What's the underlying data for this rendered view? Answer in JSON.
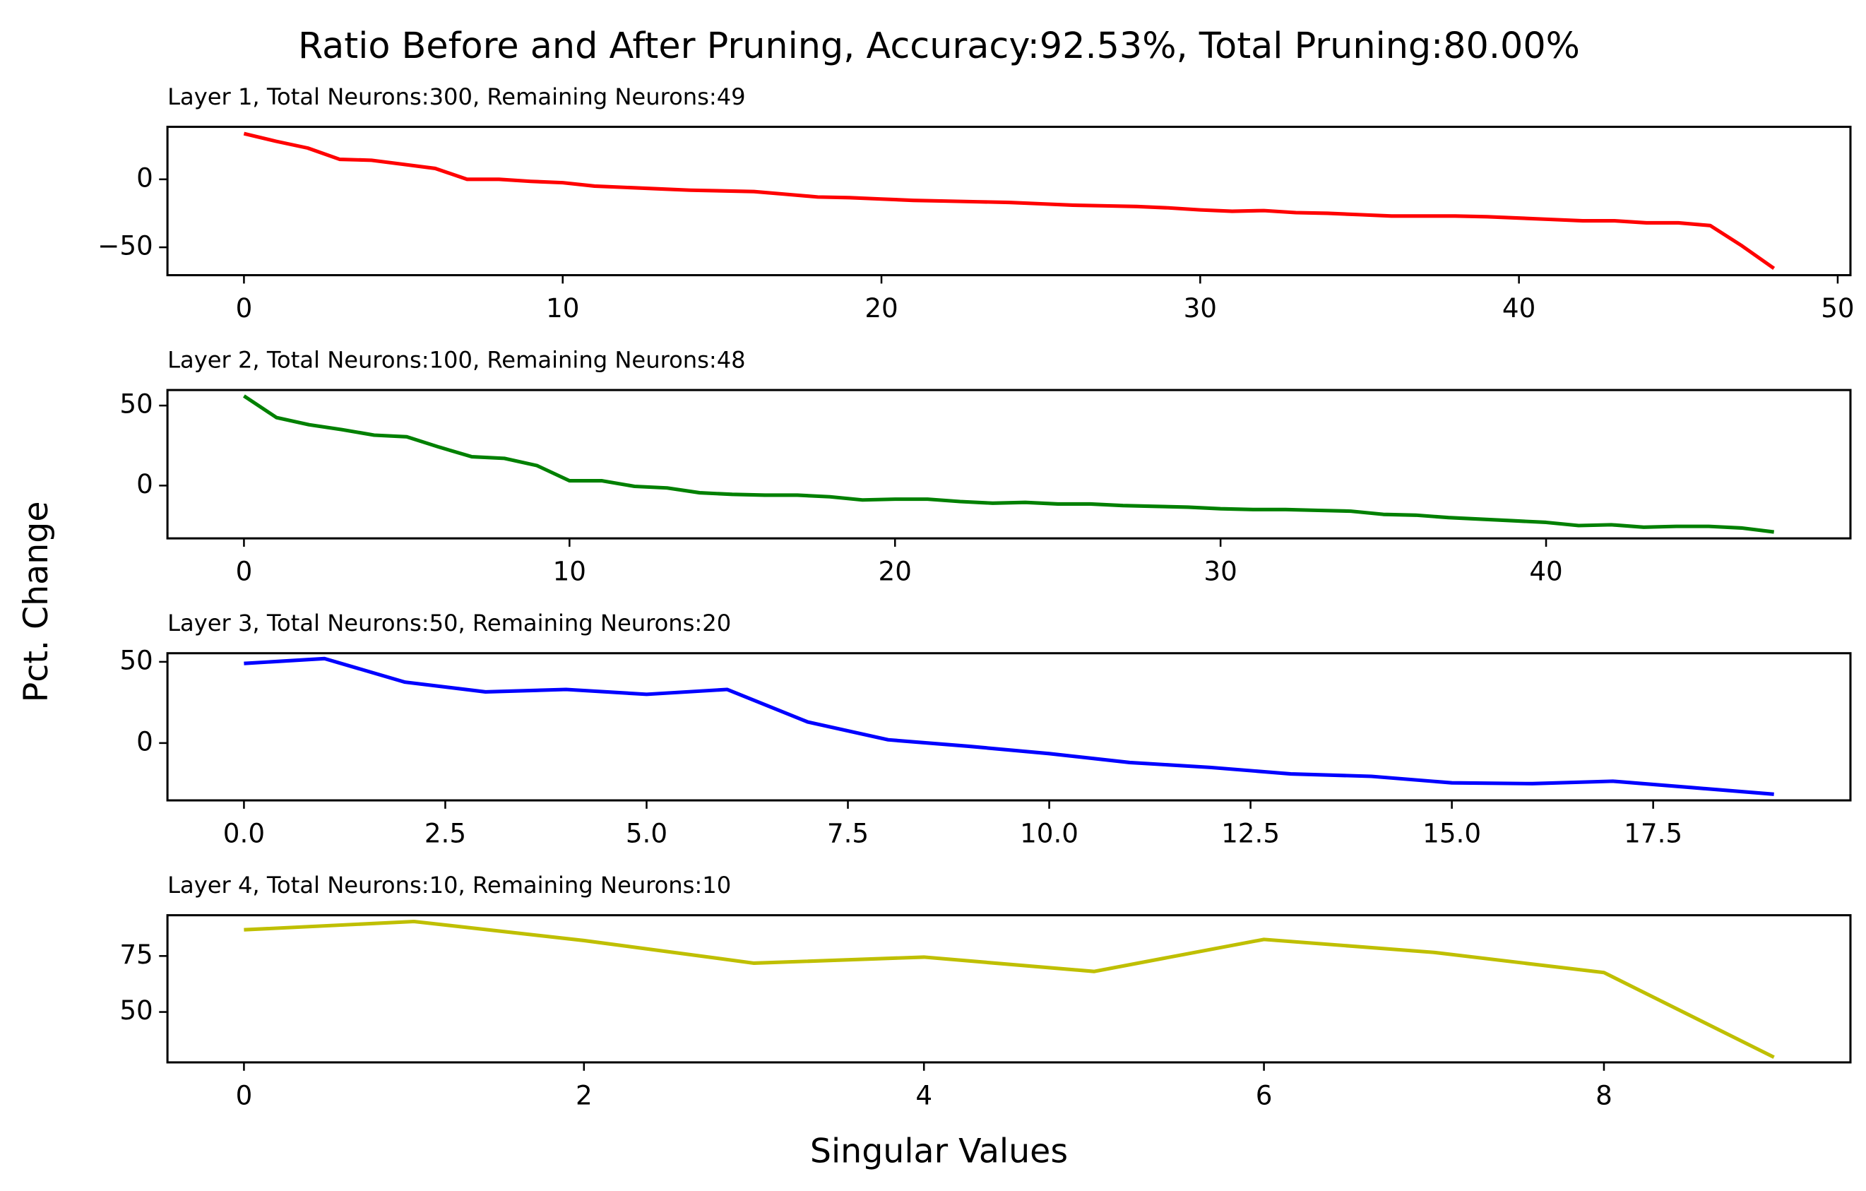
{
  "suptitle": "Ratio Before and After Pruning, Accuracy:92.53%, Total Pruning:80.00%",
  "xlabel": "Singular Values",
  "ylabel": "Pct. Change",
  "chart_data": [
    {
      "type": "line",
      "title": "Layer 1, Total Neurons:300, Remaining Neurons:49",
      "color": "#ff0000",
      "x": [
        0,
        1,
        2,
        3,
        4,
        5,
        6,
        7,
        8,
        9,
        10,
        11,
        12,
        13,
        14,
        15,
        16,
        17,
        18,
        19,
        20,
        21,
        22,
        23,
        24,
        25,
        26,
        27,
        28,
        29,
        30,
        31,
        32,
        33,
        34,
        35,
        36,
        37,
        38,
        39,
        40,
        41,
        42,
        43,
        44,
        45,
        46,
        47,
        48
      ],
      "values": [
        33.6,
        28,
        23,
        14.7,
        14,
        11,
        8,
        0,
        0,
        -1.5,
        -2.5,
        -5,
        -6,
        -7,
        -8,
        -8.5,
        -9,
        -11,
        -13,
        -13.5,
        -14.5,
        -15.5,
        -16,
        -16.5,
        -17,
        -18,
        -19,
        -19.5,
        -20,
        -21,
        -22.5,
        -23.5,
        -23,
        -24.5,
        -25,
        -26,
        -27,
        -27,
        -27,
        -27.5,
        -28.5,
        -29.5,
        -30.5,
        -30.5,
        -32,
        -32,
        -34,
        -49,
        -65.5
      ],
      "xlim": [
        -2.4,
        50.4
      ],
      "ylim": [
        -70.5,
        38.6
      ],
      "xticks": [
        0,
        10,
        20,
        30,
        40,
        50
      ],
      "yticks": [
        {
          "value": -50,
          "label": "−50"
        },
        0
      ]
    },
    {
      "type": "line",
      "title": "Layer 2, Total Neurons:100, Remaining Neurons:48",
      "color": "#008000",
      "x": [
        0,
        1,
        2,
        3,
        4,
        5,
        6,
        7,
        8,
        9,
        10,
        11,
        12,
        13,
        14,
        15,
        16,
        17,
        18,
        19,
        20,
        21,
        22,
        23,
        24,
        25,
        26,
        27,
        28,
        29,
        30,
        31,
        32,
        33,
        34,
        35,
        36,
        37,
        38,
        39,
        40,
        41,
        42,
        43,
        44,
        45,
        46,
        47
      ],
      "values": [
        56,
        42.5,
        38,
        35,
        31.5,
        30.5,
        24,
        18,
        17,
        12.5,
        3,
        3,
        -0.5,
        -1.5,
        -4.5,
        -5.5,
        -6,
        -6,
        -7,
        -9,
        -8.5,
        -8.5,
        -10,
        -11,
        -10.5,
        -11.5,
        -11.5,
        -12.5,
        -13,
        -13.5,
        -14.5,
        -15,
        -15,
        -15.5,
        -16,
        -18,
        -18.5,
        -20,
        -21,
        -22,
        -23,
        -25,
        -24.5,
        -26,
        -25.5,
        -25.5,
        -26.5,
        -29
      ],
      "xlim": [
        -2.35,
        49.35
      ],
      "ylim": [
        -33,
        59.7
      ],
      "xticks": [
        0,
        10,
        20,
        30,
        40
      ],
      "yticks": [
        0,
        50
      ]
    },
    {
      "type": "line",
      "title": "Layer 3, Total Neurons:50, Remaining Neurons:20",
      "color": "#0000ff",
      "x": [
        0,
        1,
        2,
        3,
        4,
        5,
        6,
        7,
        8,
        9,
        10,
        11,
        12,
        13,
        14,
        15,
        16,
        17,
        18,
        19
      ],
      "values": [
        49,
        52,
        37.5,
        31.5,
        33,
        30,
        33,
        13,
        2,
        -2,
        -6.5,
        -12,
        -15,
        -19,
        -20.5,
        -24.5,
        -25,
        -23.5,
        -27.5,
        -31.5
      ],
      "xlim": [
        -0.95,
        19.95
      ],
      "ylim": [
        -35.3,
        55.3
      ],
      "xticks": [
        {
          "value": 0,
          "label": "0.0"
        },
        {
          "value": 2.5,
          "label": "2.5"
        },
        {
          "value": 5,
          "label": "5.0"
        },
        {
          "value": 7.5,
          "label": "7.5"
        },
        {
          "value": 10,
          "label": "10.0"
        },
        {
          "value": 12.5,
          "label": "12.5"
        },
        {
          "value": 15,
          "label": "15.0"
        },
        {
          "value": 17.5,
          "label": "17.5"
        }
      ],
      "yticks": [
        0,
        50
      ]
    },
    {
      "type": "line",
      "title": "Layer 4, Total Neurons:10, Remaining Neurons:10",
      "color": "#bfbf00",
      "x": [
        0,
        1,
        2,
        3,
        4,
        5,
        6,
        7,
        8,
        9
      ],
      "values": [
        86.7,
        90.4,
        81.9,
        71.8,
        74.5,
        68.1,
        82.4,
        76.6,
        67.6,
        29.8
      ],
      "xlim": [
        -0.45,
        9.45
      ],
      "ylim": [
        27.5,
        93.2
      ],
      "xticks": [
        0,
        2,
        4,
        6,
        8
      ],
      "yticks": [
        50,
        75
      ]
    }
  ]
}
